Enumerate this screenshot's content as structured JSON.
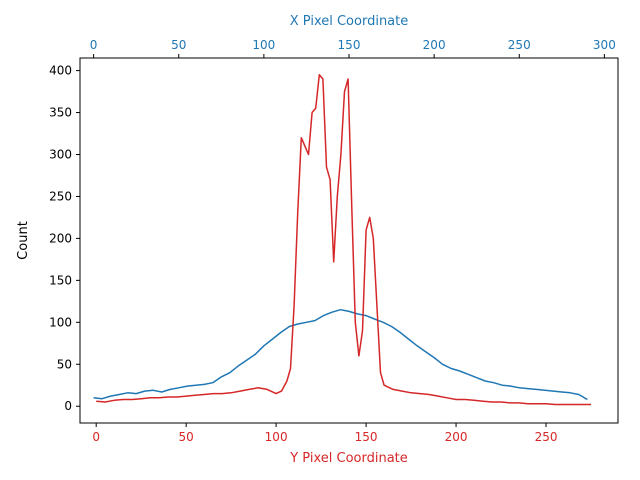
{
  "chart_data": {
    "type": "line",
    "title": "",
    "ylabel": "Count",
    "ylim": [
      -20,
      415
    ],
    "colors": {
      "x_series": "#1f77b4",
      "y_series": "#d62728",
      "axes": "#000000"
    },
    "x_axis_top": {
      "label": "X Pixel Coordinate",
      "range": [
        -8,
        308
      ],
      "ticks": [
        0,
        50,
        100,
        150,
        200,
        250,
        300
      ],
      "tick_labels": [
        "0",
        "50",
        "100",
        "150",
        "200",
        "250",
        "300"
      ]
    },
    "x_axis_bottom": {
      "label": "Y Pixel Coordinate",
      "range": [
        -9,
        290
      ],
      "ticks": [
        0,
        50,
        100,
        150,
        200,
        250
      ],
      "tick_labels": [
        "0",
        "50",
        "100",
        "150",
        "200",
        "250"
      ]
    },
    "y_ticks": [
      0,
      50,
      100,
      150,
      200,
      250,
      300,
      350,
      400
    ],
    "y_tick_labels": [
      "0",
      "50",
      "100",
      "150",
      "200",
      "250",
      "300",
      "350",
      "400"
    ],
    "grid": false,
    "legend": "none",
    "series": [
      {
        "axis": "top",
        "color": "#1f77b4",
        "x": [
          0,
          5,
          10,
          15,
          20,
          25,
          30,
          35,
          40,
          45,
          50,
          55,
          60,
          65,
          70,
          75,
          80,
          85,
          90,
          95,
          100,
          105,
          110,
          115,
          120,
          125,
          130,
          135,
          140,
          145,
          150,
          155,
          160,
          165,
          170,
          175,
          180,
          185,
          190,
          195,
          200,
          205,
          210,
          215,
          220,
          225,
          230,
          235,
          240,
          245,
          250,
          255,
          260,
          265,
          270,
          275,
          280,
          285,
          290
        ],
        "values": [
          10,
          9,
          12,
          14,
          16,
          15,
          18,
          19,
          17,
          20,
          22,
          24,
          25,
          26,
          28,
          35,
          40,
          48,
          55,
          62,
          72,
          80,
          88,
          95,
          98,
          100,
          102,
          108,
          112,
          115,
          113,
          110,
          108,
          104,
          100,
          95,
          88,
          80,
          72,
          65,
          58,
          50,
          45,
          42,
          38,
          34,
          30,
          28,
          25,
          24,
          22,
          21,
          20,
          19,
          18,
          17,
          16,
          14,
          8
        ]
      },
      {
        "axis": "bottom",
        "color": "#d62728",
        "x": [
          0,
          5,
          10,
          15,
          20,
          25,
          30,
          35,
          40,
          45,
          50,
          55,
          60,
          65,
          70,
          75,
          80,
          85,
          90,
          95,
          100,
          103,
          106,
          108,
          110,
          112,
          114,
          116,
          118,
          120,
          122,
          124,
          126,
          128,
          130,
          132,
          134,
          136,
          138,
          140,
          142,
          144,
          146,
          148,
          150,
          152,
          154,
          156,
          158,
          160,
          165,
          170,
          175,
          180,
          185,
          190,
          195,
          200,
          205,
          210,
          215,
          220,
          225,
          230,
          235,
          240,
          245,
          250,
          255,
          260,
          265,
          270,
          275
        ],
        "values": [
          6,
          5,
          7,
          8,
          8,
          9,
          10,
          10,
          11,
          11,
          12,
          13,
          14,
          15,
          15,
          16,
          18,
          20,
          22,
          20,
          15,
          18,
          30,
          45,
          120,
          230,
          320,
          310,
          300,
          350,
          355,
          395,
          390,
          285,
          270,
          172,
          250,
          300,
          375,
          390,
          240,
          100,
          60,
          90,
          210,
          225,
          200,
          120,
          40,
          25,
          20,
          18,
          16,
          15,
          14,
          12,
          10,
          8,
          8,
          7,
          6,
          5,
          5,
          4,
          4,
          3,
          3,
          3,
          2,
          2,
          2,
          2,
          2
        ]
      }
    ]
  }
}
